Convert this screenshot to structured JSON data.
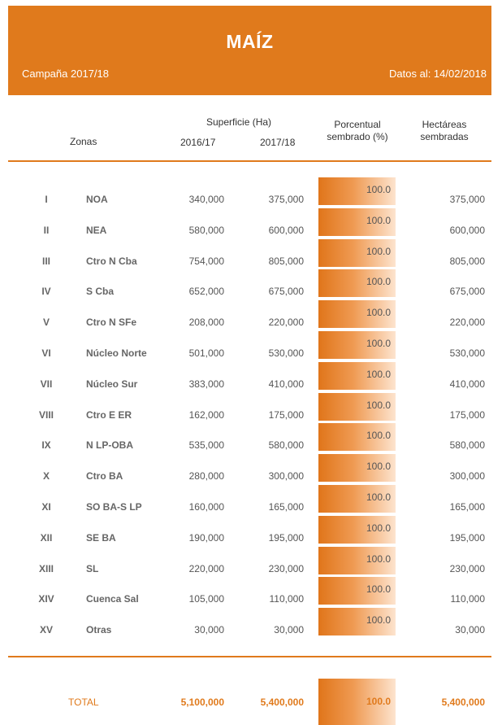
{
  "header": {
    "title": "MAÍZ",
    "campaign": "Campaña 2017/18",
    "date": "Datos al: 14/02/2018"
  },
  "columns": {
    "zones": "Zonas",
    "surface": "Superficie (Ha)",
    "year_prev": "2016/17",
    "year_curr": "2017/18",
    "pct_line1": "Porcentual",
    "pct_line2": "sembrado (%)",
    "ha_line1": "Hectáreas",
    "ha_line2": "sembradas"
  },
  "rows": [
    {
      "roman": "I",
      "zone": "NOA",
      "s1617": "340,000",
      "s1718": "375,000",
      "pct": "100.0",
      "sown": "375,000"
    },
    {
      "roman": "II",
      "zone": "NEA",
      "s1617": "580,000",
      "s1718": "600,000",
      "pct": "100.0",
      "sown": "600,000"
    },
    {
      "roman": "III",
      "zone": "Ctro N Cba",
      "s1617": "754,000",
      "s1718": "805,000",
      "pct": "100.0",
      "sown": "805,000"
    },
    {
      "roman": "IV",
      "zone": "S Cba",
      "s1617": "652,000",
      "s1718": "675,000",
      "pct": "100.0",
      "sown": "675,000"
    },
    {
      "roman": "V",
      "zone": "Ctro N SFe",
      "s1617": "208,000",
      "s1718": "220,000",
      "pct": "100.0",
      "sown": "220,000"
    },
    {
      "roman": "VI",
      "zone": "Núcleo Norte",
      "s1617": "501,000",
      "s1718": "530,000",
      "pct": "100.0",
      "sown": "530,000"
    },
    {
      "roman": "VII",
      "zone": "Núcleo Sur",
      "s1617": "383,000",
      "s1718": "410,000",
      "pct": "100.0",
      "sown": "410,000"
    },
    {
      "roman": "VIII",
      "zone": "Ctro E ER",
      "s1617": "162,000",
      "s1718": "175,000",
      "pct": "100.0",
      "sown": "175,000"
    },
    {
      "roman": "IX",
      "zone": "N LP-OBA",
      "s1617": "535,000",
      "s1718": "580,000",
      "pct": "100.0",
      "sown": "580,000"
    },
    {
      "roman": "X",
      "zone": "Ctro BA",
      "s1617": "280,000",
      "s1718": "300,000",
      "pct": "100.0",
      "sown": "300,000"
    },
    {
      "roman": "XI",
      "zone": "SO BA-S LP",
      "s1617": "160,000",
      "s1718": "165,000",
      "pct": "100.0",
      "sown": "165,000"
    },
    {
      "roman": "XII",
      "zone": "SE BA",
      "s1617": "190,000",
      "s1718": "195,000",
      "pct": "100.0",
      "sown": "195,000"
    },
    {
      "roman": "XIII",
      "zone": "SL",
      "s1617": "220,000",
      "s1718": "230,000",
      "pct": "100.0",
      "sown": "230,000"
    },
    {
      "roman": "XIV",
      "zone": "Cuenca Sal",
      "s1617": "105,000",
      "s1718": "110,000",
      "pct": "100.0",
      "sown": "110,000"
    },
    {
      "roman": "XV",
      "zone": "Otras",
      "s1617": "30,000",
      "s1718": "30,000",
      "pct": "100.0",
      "sown": "30,000"
    }
  ],
  "total": {
    "label": "TOTAL",
    "s1617": "5,100,000",
    "s1718": "5,400,000",
    "pct": "100.0",
    "sown": "5,400,000"
  },
  "colors": {
    "accent": "#e07a1c"
  }
}
